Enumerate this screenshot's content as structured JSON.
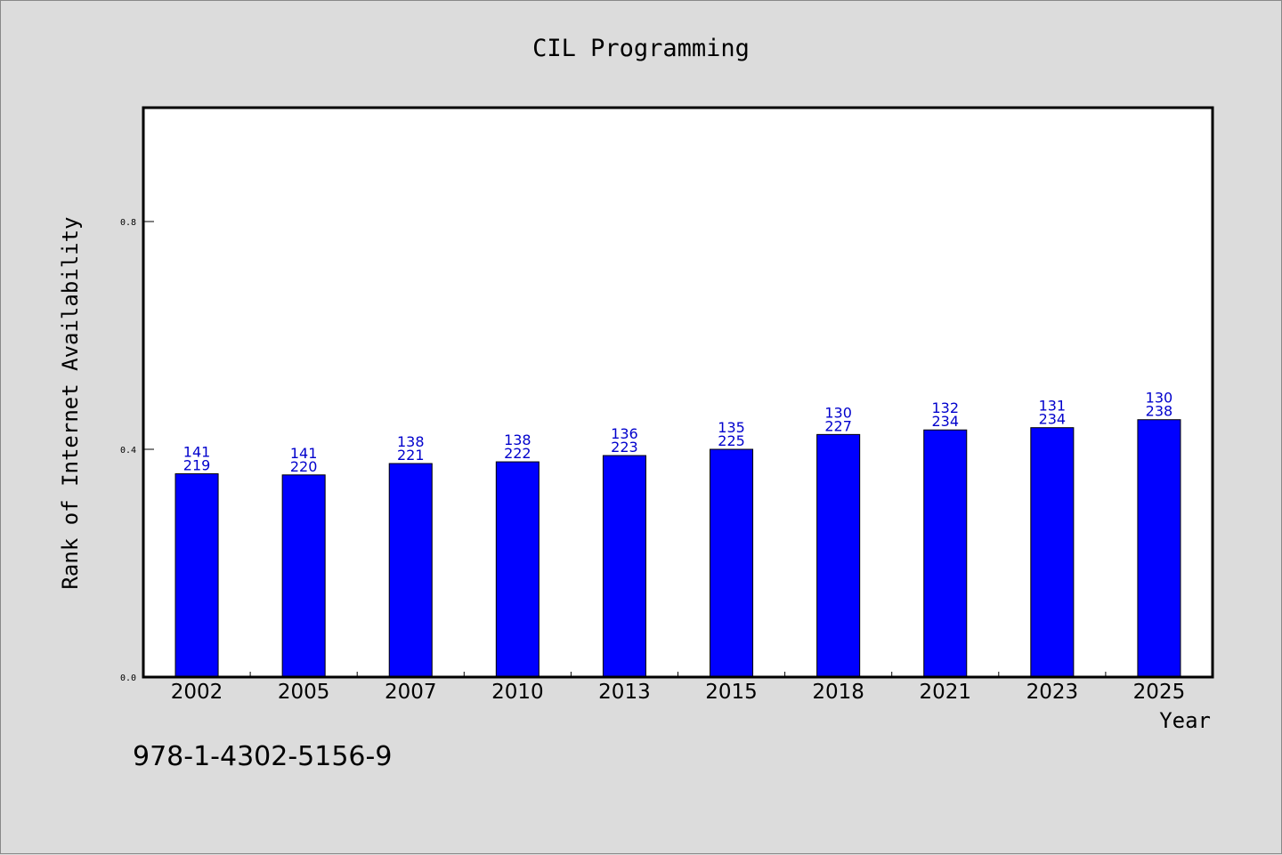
{
  "chart_data": {
    "type": "bar",
    "title": "CIL Programming",
    "xlabel": "Year",
    "ylabel": "Rank of Internet Availability",
    "ylim": [
      0,
      1.0
    ],
    "yticks": [
      "0.0",
      "0.4",
      "0.8"
    ],
    "ytick_values": [
      0.0,
      0.4,
      0.8
    ],
    "categories": [
      "2002",
      "2005",
      "2007",
      "2010",
      "2013",
      "2015",
      "2018",
      "2021",
      "2023",
      "2025"
    ],
    "values": [
      0.357,
      0.355,
      0.375,
      0.378,
      0.389,
      0.4,
      0.426,
      0.434,
      0.438,
      0.452
    ],
    "label_top": [
      "141",
      "141",
      "138",
      "138",
      "136",
      "135",
      "130",
      "132",
      "131",
      "130"
    ],
    "label_bottom": [
      "219",
      "220",
      "221",
      "222",
      "223",
      "225",
      "227",
      "234",
      "234",
      "238"
    ],
    "bar_color": "#0000ff",
    "label_color": "#0000cc",
    "grid": false,
    "legend": "none"
  },
  "footer": {
    "isbn": "978-1-4302-5156-9"
  }
}
